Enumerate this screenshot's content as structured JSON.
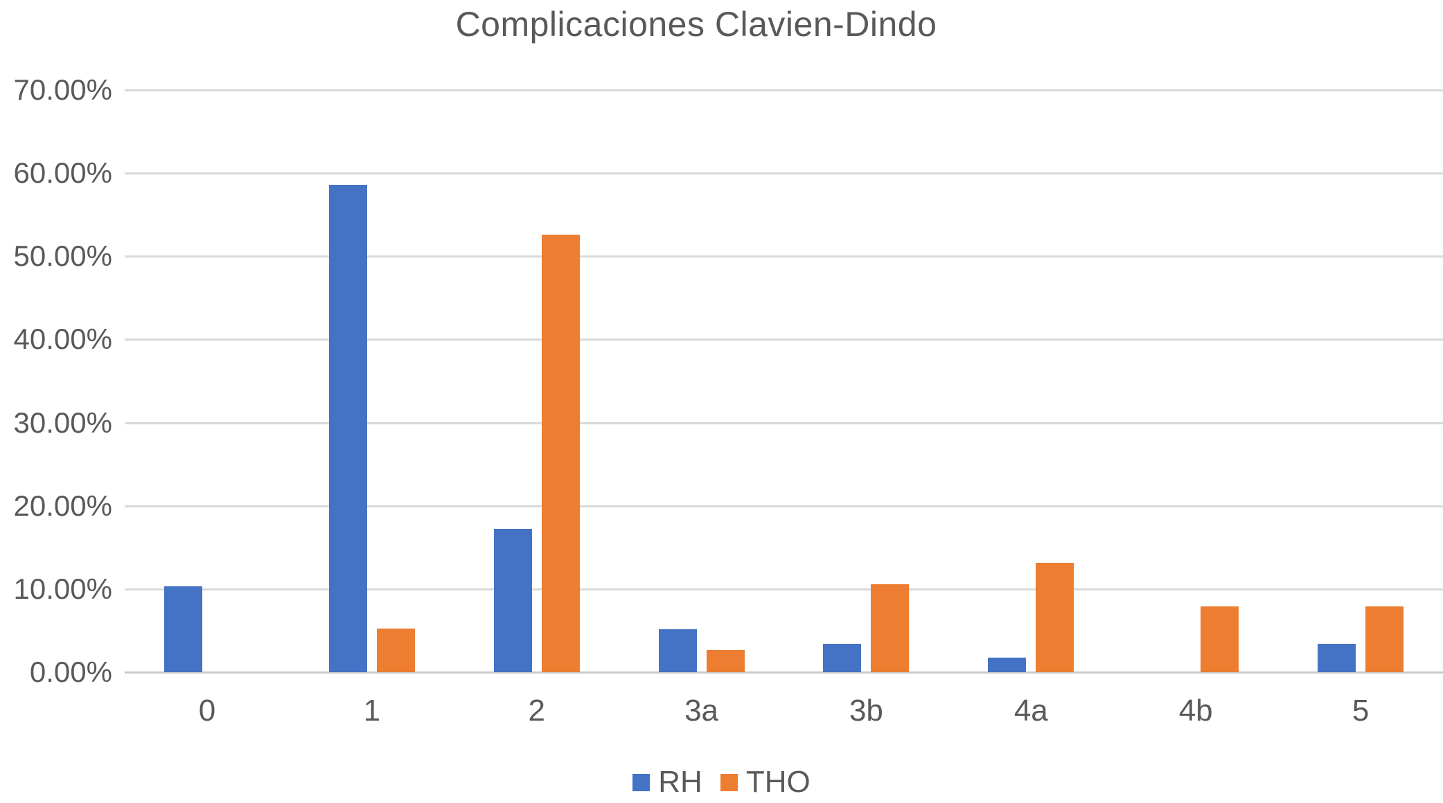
{
  "chart_data": {
    "type": "bar",
    "title": "Complicaciones Clavien-Dindo",
    "categories": [
      "0",
      "1",
      "2",
      "3a",
      "3b",
      "4a",
      "4b",
      "5"
    ],
    "series": [
      {
        "name": "RH",
        "color": "#4472C4",
        "values": [
          10.34,
          58.62,
          17.24,
          5.17,
          3.45,
          1.72,
          0,
          3.45
        ]
      },
      {
        "name": "THO",
        "color": "#ED7D31",
        "values": [
          0,
          5.26,
          52.63,
          2.63,
          10.53,
          13.16,
          7.89,
          7.89
        ]
      }
    ],
    "y_axis": {
      "tick_labels": [
        "0.00%",
        "10.00%",
        "20.00%",
        "30.00%",
        "40.00%",
        "50.00%",
        "60.00%",
        "70.00%"
      ],
      "tick_values": [
        0,
        10,
        20,
        30,
        40,
        50,
        60,
        70
      ],
      "ylim": [
        0,
        70
      ]
    },
    "xlabel": "",
    "ylabel": "",
    "grid": true,
    "legend_position": "bottom",
    "colors": {
      "grid": "#d9d9d9",
      "axis_text": "#595959",
      "title_text": "#595959",
      "background": "#ffffff"
    }
  }
}
